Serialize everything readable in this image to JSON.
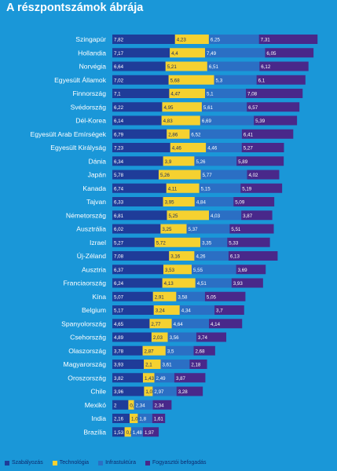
{
  "chart_data": {
    "type": "bar",
    "stacked": true,
    "orientation": "horizontal",
    "title": "A részpontszámok ábrája",
    "categories": [
      "Szingapúr",
      "Hollandia",
      "Norvégia",
      "Egyesült Államok",
      "Finnország",
      "Svédország",
      "Dél-Korea",
      "Egyesült Arab Emírségek",
      "Egyesült Királyság",
      "Dánia",
      "Japán",
      "Kanada",
      "Tajvan",
      "Németország",
      "Ausztrália",
      "Izrael",
      "Új-Zéland",
      "Ausztria",
      "Franciaország",
      "Kína",
      "Belgium",
      "Spanyolország",
      "Csehország",
      "Olaszország",
      "Magyarország",
      "Oroszország",
      "Chile",
      "Mexikó",
      "India",
      "Brazília"
    ],
    "series": [
      {
        "name": "Szabályozás",
        "color": "#1f3c99",
        "values": [
          7.82,
          7.17,
          6.64,
          7.02,
          7.1,
          6.22,
          6.14,
          6.79,
          7.23,
          6.34,
          5.78,
          6.74,
          6.33,
          6.81,
          6.02,
          5.27,
          7.08,
          6.37,
          6.24,
          5.07,
          5.17,
          4.65,
          4.89,
          3.78,
          3.93,
          3.82,
          3.96,
          2,
          2.16,
          1.53
        ]
      },
      {
        "name": "Technológia",
        "color": "#f5d130",
        "values": [
          4.23,
          4.4,
          5.21,
          5.68,
          4.47,
          4.95,
          4.83,
          2.86,
          4.46,
          3.9,
          5.26,
          4.11,
          3.95,
          5.25,
          3.25,
          5.72,
          3.16,
          3.53,
          4.13,
          2.91,
          3.24,
          2.77,
          2.03,
          2.87,
          2.1,
          1.43,
          1.08,
          0.71,
          1.02,
          0.81
        ]
      },
      {
        "name": "Infrastuktúra",
        "color": "#2b6fc4",
        "values": [
          6.25,
          7.49,
          6.51,
          5.3,
          5.1,
          5.61,
          6.69,
          6.52,
          4.46,
          5.26,
          5.77,
          5.15,
          4.84,
          4.03,
          5.37,
          3.35,
          4.26,
          5.55,
          4.51,
          3.58,
          4.34,
          4.64,
          3.56,
          3.5,
          3.61,
          2.49,
          2.97,
          2.34,
          1.8,
          1.48
        ]
      },
      {
        "name": "Fogyasztói befogadás",
        "color": "#49288a",
        "values": [
          7.31,
          6.05,
          6.12,
          6.1,
          7.08,
          6.57,
          5.39,
          6.41,
          5.27,
          5.89,
          4.02,
          5.19,
          5.09,
          3.87,
          5.51,
          5.33,
          6.13,
          3.69,
          3.93,
          5.05,
          3.7,
          4.14,
          3.74,
          2.68,
          2.18,
          3.87,
          3.28,
          2.34,
          1.61,
          1.97
        ]
      }
    ],
    "labels": [
      [
        "7,82",
        "4,23",
        "6,25",
        "7,31"
      ],
      [
        "7,17",
        "4,4",
        "7,49",
        "6,05"
      ],
      [
        "6,64",
        "5,21",
        "6,51",
        "6,12"
      ],
      [
        "7,02",
        "5,68",
        "5,3",
        "6,1"
      ],
      [
        "7,1",
        "4,47",
        "5,1",
        "7,08"
      ],
      [
        "6,22",
        "4,95",
        "5,61",
        "6,57"
      ],
      [
        "6,14",
        "4,83",
        "6,69",
        "5,39"
      ],
      [
        "6,79",
        "2,86",
        "6,52",
        "6,41"
      ],
      [
        "7,23",
        "4,46",
        "4,46",
        "5,27"
      ],
      [
        "6,34",
        "3,9",
        "5,26",
        "5,89"
      ],
      [
        "5,78",
        "5,26",
        "5,77",
        "4,02"
      ],
      [
        "6,74",
        "4,11",
        "5,15",
        "5,19"
      ],
      [
        "6,33",
        "3,95",
        "4,84",
        "5,09"
      ],
      [
        "6,81",
        "5,25",
        "4,03",
        "3,87"
      ],
      [
        "6,02",
        "3,25",
        "5,37",
        "5,51"
      ],
      [
        "5,27",
        "5,72",
        "3,35",
        "5,33"
      ],
      [
        "7,08",
        "3,16",
        "4,26",
        "6,13"
      ],
      [
        "6,37",
        "3,53",
        "5,55",
        "3,69"
      ],
      [
        "6,24",
        "4,13",
        "4,51",
        "3,93"
      ],
      [
        "5,07",
        "2,91",
        "3,58",
        "5,05"
      ],
      [
        "5,17",
        "3,24",
        "4,34",
        "3,7"
      ],
      [
        "4,65",
        "2,77",
        "4,64",
        "4,14"
      ],
      [
        "4,89",
        "2,03",
        "3,56",
        "3,74"
      ],
      [
        "3,78",
        "2,87",
        "3,5",
        "2,68"
      ],
      [
        "3,93",
        "2,1",
        "3,61",
        "2,18"
      ],
      [
        "3,82",
        "1,43",
        "2,49",
        "3,87"
      ],
      [
        "3,96",
        "1,08",
        "2,97",
        "3,28"
      ],
      [
        "2",
        "0,71",
        "2,34",
        "2,34"
      ],
      [
        "2,16",
        "1,02",
        "1,8",
        "1,61"
      ],
      [
        "1,53",
        "0,81",
        "1,48",
        "1,97"
      ]
    ],
    "legend_position": "bottom",
    "grid": false
  }
}
